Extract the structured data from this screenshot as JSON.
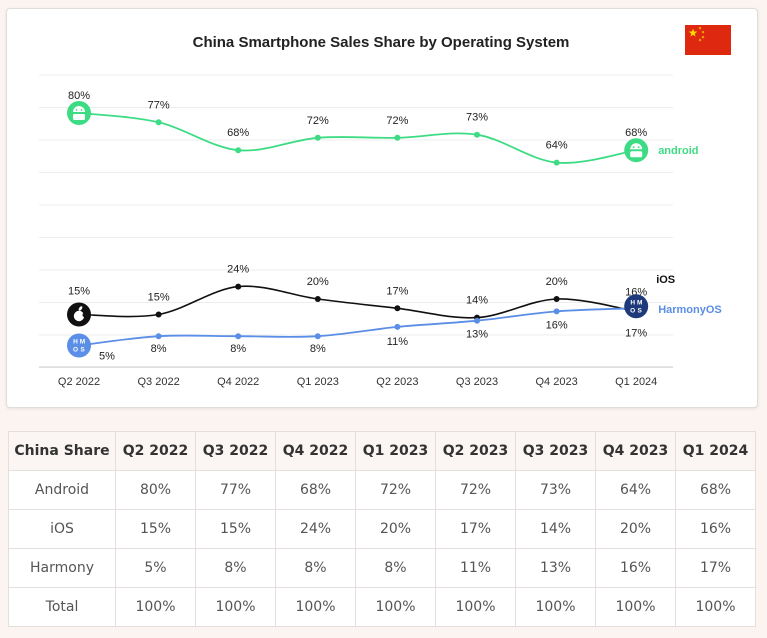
{
  "chart_data": {
    "type": "line",
    "title": "China Smartphone Sales Share by Operating System",
    "categories": [
      "Q2 2022",
      "Q3 2022",
      "Q4 2022",
      "Q1 2023",
      "Q2 2023",
      "Q3 2023",
      "Q4 2023",
      "Q1 2024"
    ],
    "series": [
      {
        "name": "android",
        "values": [
          80,
          77,
          68,
          72,
          72,
          73,
          64,
          68
        ],
        "labels": [
          "80%",
          "77%",
          "68%",
          "72%",
          "72%",
          "73%",
          "64%",
          "68%"
        ],
        "color": "#3ddc84"
      },
      {
        "name": "iOS",
        "values": [
          15,
          15,
          24,
          20,
          17,
          14,
          20,
          16
        ],
        "labels": [
          "15%",
          "15%",
          "24%",
          "20%",
          "17%",
          "14%",
          "20%",
          "16%"
        ],
        "color": "#111111"
      },
      {
        "name": "HarmonyOS",
        "values": [
          5,
          8,
          8,
          8,
          11,
          13,
          16,
          17
        ],
        "labels": [
          "5%",
          "8%",
          "8%",
          "8%",
          "11%",
          "13%",
          "16%",
          "17%"
        ],
        "color": "#5b8ee6"
      }
    ],
    "ylim": [
      0,
      85
    ],
    "grid": true,
    "icons": {
      "android": "android-logo-icon",
      "ios": "apple-logo-icon",
      "harmony": "hmos-logo-icon",
      "flag": "china-flag-icon"
    },
    "android_badge_text": "android",
    "hmos_badge_text": [
      "H",
      "M",
      "O",
      "S"
    ]
  },
  "table": {
    "header": [
      "China Share",
      "Q2 2022",
      "Q3 2022",
      "Q4 2022",
      "Q1 2023",
      "Q2 2023",
      "Q3 2023",
      "Q4 2023",
      "Q1 2024"
    ],
    "rows": [
      [
        "Android",
        "80%",
        "77%",
        "68%",
        "72%",
        "72%",
        "73%",
        "64%",
        "68%"
      ],
      [
        "iOS",
        "15%",
        "15%",
        "24%",
        "20%",
        "17%",
        "14%",
        "20%",
        "16%"
      ],
      [
        "Harmony",
        "5%",
        "8%",
        "8%",
        "8%",
        "11%",
        "13%",
        "16%",
        "17%"
      ],
      [
        "Total",
        "100%",
        "100%",
        "100%",
        "100%",
        "100%",
        "100%",
        "100%",
        "100%"
      ]
    ]
  }
}
